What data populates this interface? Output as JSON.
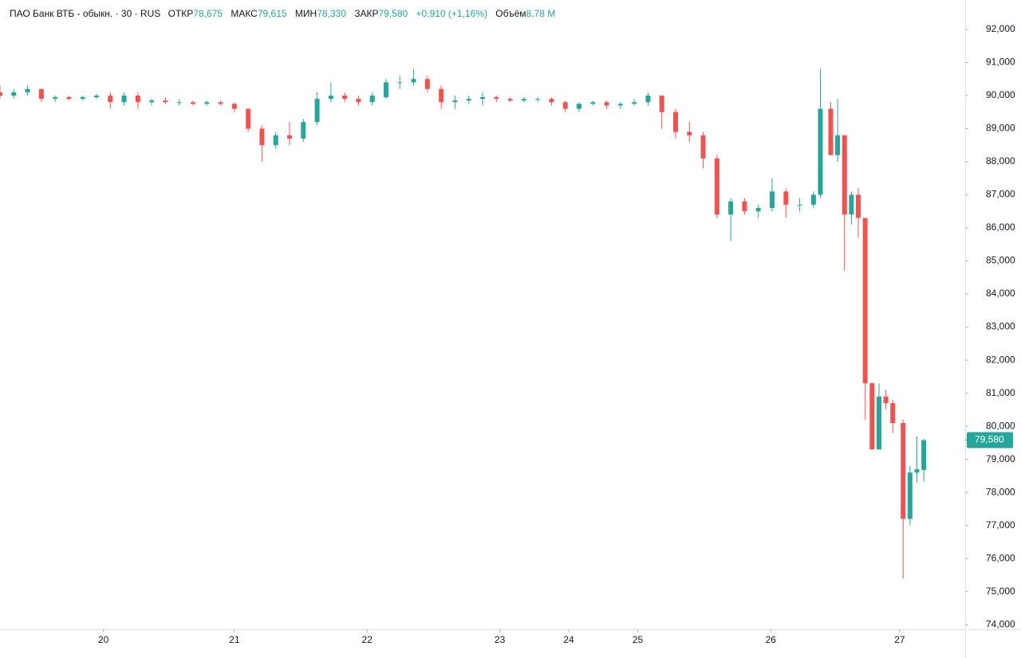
{
  "chart_data": {
    "type": "candlestick",
    "header": {
      "symbol": "ПАО Банк ВТБ - обыкн. · 30 · RUS",
      "open_key": "ОТКР",
      "open": "78,675",
      "high_key": "МАКС",
      "high": "79,615",
      "low_key": "МИН",
      "low": "78,330",
      "close_key": "ЗАКР",
      "close": "79,580",
      "change": "+0,910 (+1,16%)",
      "volume_key": "Объём",
      "volume": "8,78 M"
    },
    "up_color": "#26a69a",
    "down_color": "#ef5350",
    "xlim": [
      0,
      280
    ],
    "ylim": [
      73.86,
      92.89
    ],
    "xticks": [
      {
        "value": 30,
        "label": "20"
      },
      {
        "value": 68,
        "label": "21"
      },
      {
        "value": 106.5,
        "label": "22"
      },
      {
        "value": 145,
        "label": "23"
      },
      {
        "value": 165,
        "label": "24"
      },
      {
        "value": 185,
        "label": "25"
      },
      {
        "value": 223.6,
        "label": "26"
      },
      {
        "value": 261,
        "label": "27"
      }
    ],
    "yticks": [
      {
        "value": 74,
        "label": "74,000"
      },
      {
        "value": 75,
        "label": "75,000"
      },
      {
        "value": 76,
        "label": "76,000"
      },
      {
        "value": 77,
        "label": "77,000"
      },
      {
        "value": 78,
        "label": "78,000"
      },
      {
        "value": 79,
        "label": "79,000"
      },
      {
        "value": 80,
        "label": "80,000"
      },
      {
        "value": 81,
        "label": "81,000"
      },
      {
        "value": 82,
        "label": "82,000"
      },
      {
        "value": 83,
        "label": "83,000"
      },
      {
        "value": 84,
        "label": "84,000"
      },
      {
        "value": 85,
        "label": "85,000"
      },
      {
        "value": 86,
        "label": "86,000"
      },
      {
        "value": 87,
        "label": "87,000"
      },
      {
        "value": 88,
        "label": "88,000"
      },
      {
        "value": 89,
        "label": "89,000"
      },
      {
        "value": 90,
        "label": "90,000"
      },
      {
        "value": 91,
        "label": "91,000"
      },
      {
        "value": 92,
        "label": "92,000"
      }
    ],
    "last_price": {
      "value": 79.58,
      "label": "79,580"
    },
    "x": [
      0,
      4,
      8,
      12,
      16,
      20,
      24,
      28,
      32,
      36,
      40,
      44,
      48,
      52,
      56,
      60,
      64,
      68,
      72,
      76,
      80,
      84,
      88,
      92,
      96,
      100,
      104,
      108,
      112,
      116,
      120,
      124,
      128,
      132,
      136,
      140,
      144,
      148,
      152,
      156,
      160,
      164,
      168,
      172,
      176,
      180,
      184,
      188,
      192,
      196,
      200,
      204,
      208,
      212,
      216,
      220,
      224,
      228,
      232,
      236,
      238,
      241,
      243,
      245,
      247,
      249,
      251,
      253,
      255,
      257,
      259,
      262,
      264,
      266,
      268
    ],
    "open": [
      90.1,
      90.0,
      90.1,
      90.2,
      89.9,
      89.95,
      89.9,
      89.95,
      90.0,
      89.8,
      90.0,
      89.8,
      89.85,
      89.8,
      89.8,
      89.75,
      89.8,
      89.75,
      89.6,
      89.0,
      88.5,
      88.8,
      88.7,
      89.2,
      89.9,
      90.0,
      89.9,
      89.8,
      89.95,
      90.4,
      90.4,
      90.5,
      90.2,
      89.8,
      89.85,
      89.9,
      89.95,
      89.9,
      89.85,
      89.9,
      89.9,
      89.8,
      89.6,
      89.75,
      89.8,
      89.7,
      89.75,
      89.8,
      90.0,
      89.5,
      88.9,
      88.8,
      88.1,
      86.4,
      86.8,
      86.5,
      86.6,
      87.1,
      86.7,
      86.7,
      87.0,
      89.6,
      88.2,
      88.8,
      86.4,
      87.0,
      86.3,
      81.3,
      79.3,
      80.9,
      80.7,
      80.1,
      77.2,
      78.6,
      78.675
    ],
    "high": [
      90.3,
      90.2,
      90.3,
      90.2,
      90.0,
      90.0,
      90.0,
      90.05,
      90.1,
      90.1,
      90.1,
      89.9,
      89.95,
      89.9,
      89.85,
      89.85,
      89.85,
      89.8,
      89.6,
      89.1,
      88.9,
      89.2,
      89.3,
      90.1,
      90.4,
      90.1,
      90.0,
      90.1,
      90.5,
      90.6,
      90.8,
      90.6,
      90.3,
      90.0,
      90.0,
      90.1,
      90.0,
      89.95,
      89.95,
      89.95,
      89.95,
      89.85,
      89.8,
      89.85,
      89.85,
      89.8,
      89.9,
      90.1,
      90.0,
      89.6,
      89.2,
      88.9,
      88.2,
      86.9,
      86.9,
      86.7,
      87.5,
      87.2,
      86.9,
      87.1,
      90.8,
      89.8,
      89.9,
      88.8,
      87.1,
      87.2,
      86.3,
      81.3,
      81.3,
      81.1,
      80.8,
      80.2,
      78.8,
      79.7,
      79.615
    ],
    "low": [
      89.9,
      89.9,
      90.0,
      89.8,
      89.8,
      89.85,
      89.85,
      89.9,
      89.6,
      89.7,
      89.6,
      89.7,
      89.75,
      89.7,
      89.7,
      89.7,
      89.7,
      89.5,
      88.9,
      88.0,
      88.4,
      88.5,
      88.6,
      89.1,
      89.8,
      89.8,
      89.7,
      89.7,
      89.9,
      90.2,
      90.3,
      90.1,
      89.6,
      89.6,
      89.75,
      89.7,
      89.8,
      89.8,
      89.8,
      89.8,
      89.7,
      89.5,
      89.5,
      89.7,
      89.6,
      89.6,
      89.7,
      89.7,
      89.0,
      88.7,
      88.6,
      87.8,
      86.3,
      85.6,
      86.4,
      86.3,
      86.5,
      86.3,
      86.5,
      86.6,
      86.9,
      88.2,
      88.0,
      84.7,
      86.1,
      85.7,
      80.2,
      79.3,
      79.3,
      80.5,
      79.8,
      75.4,
      77.0,
      78.3,
      78.33
    ],
    "close": [
      90.0,
      90.1,
      90.2,
      89.9,
      89.95,
      89.9,
      89.95,
      90.0,
      89.8,
      90.0,
      89.8,
      89.85,
      89.8,
      89.8,
      89.75,
      89.8,
      89.75,
      89.6,
      89.0,
      88.5,
      88.8,
      88.7,
      89.2,
      89.9,
      90.0,
      89.9,
      89.8,
      90.0,
      90.4,
      90.4,
      90.5,
      90.2,
      89.8,
      89.85,
      89.9,
      89.95,
      89.9,
      89.85,
      89.9,
      89.9,
      89.8,
      89.6,
      89.75,
      89.8,
      89.7,
      89.75,
      89.8,
      90.0,
      89.5,
      88.9,
      88.8,
      88.1,
      86.4,
      86.8,
      86.5,
      86.6,
      87.1,
      86.7,
      86.7,
      87.0,
      89.6,
      88.2,
      88.8,
      86.4,
      87.0,
      86.3,
      81.3,
      79.3,
      80.9,
      80.7,
      80.1,
      77.2,
      78.6,
      78.7,
      79.58
    ]
  }
}
